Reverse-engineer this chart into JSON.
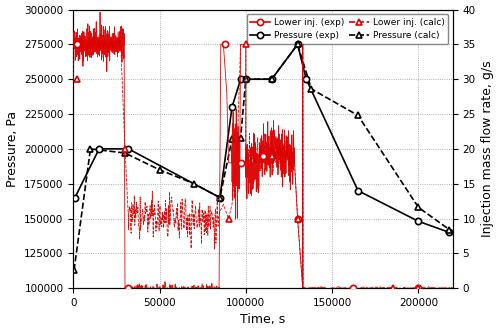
{
  "xlabel": "Time, s",
  "ylabel_left": "Pressure, Pa",
  "ylabel_right": "Injection mass flow rate, g/s",
  "xlim": [
    0,
    220000
  ],
  "ylim_left": [
    100000,
    300000
  ],
  "ylim_right": [
    0,
    40
  ],
  "yticks_left": [
    100000,
    125000,
    150000,
    175000,
    200000,
    225000,
    250000,
    275000,
    300000
  ],
  "yticks_right": [
    0,
    5,
    10,
    15,
    20,
    25,
    30,
    35,
    40
  ],
  "xticks": [
    0,
    50000,
    100000,
    150000,
    200000
  ],
  "pressure_exp_x": [
    1000,
    15000,
    32000,
    85000,
    92000,
    97000,
    100000,
    115000,
    130000,
    135000,
    165000,
    200000,
    218000
  ],
  "pressure_exp_y": [
    165000,
    200000,
    200000,
    165000,
    230000,
    250000,
    250000,
    250000,
    275000,
    250000,
    170000,
    148000,
    140000
  ],
  "pressure_calc_x": [
    500,
    10000,
    30000,
    50000,
    70000,
    85000,
    92000,
    97000,
    100000,
    115000,
    130000,
    138000,
    165000,
    200000,
    218000
  ],
  "pressure_calc_y": [
    113000,
    200000,
    197000,
    185000,
    175000,
    165000,
    207000,
    208000,
    250000,
    250000,
    275000,
    243000,
    224000,
    158000,
    142000
  ],
  "color_red": "#dd0000",
  "color_black": "#000000",
  "background_color": "#ffffff",
  "grid_color": "#999999"
}
